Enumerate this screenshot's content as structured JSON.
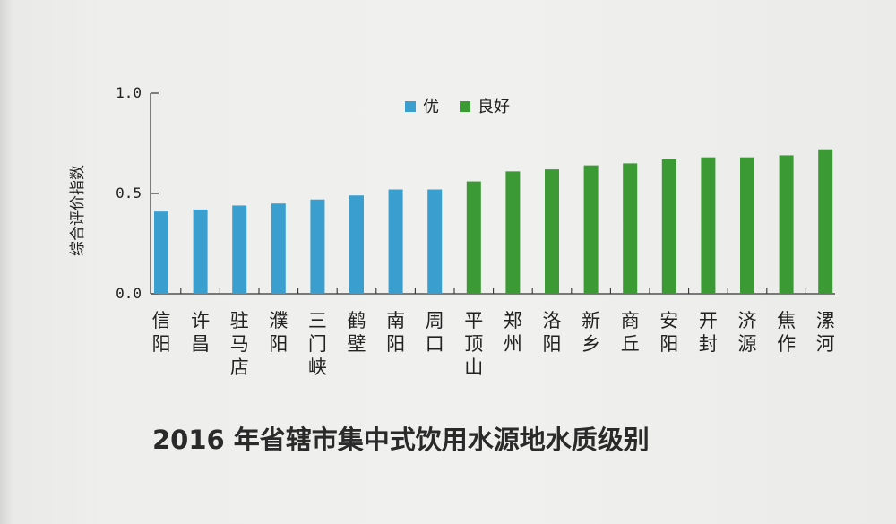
{
  "chart_data": {
    "type": "bar",
    "title": "2016 年省辖市集中式饮用水源地水质级别",
    "ylabel": "综合评价指数",
    "xlabel": "",
    "ylim": [
      0.0,
      1.0
    ],
    "yticks": [
      "0.0",
      "0.5",
      "1.0"
    ],
    "legend_position": "top-center",
    "legend": [
      {
        "name": "优",
        "color": "#3a9fcf"
      },
      {
        "name": "良好",
        "color": "#3c9a35"
      }
    ],
    "categories": [
      "信阳",
      "许昌",
      "驻马店",
      "濮阳",
      "三门峡",
      "鹤壁",
      "南阳",
      "周口",
      "平顶山",
      "郑州",
      "洛阳",
      "新乡",
      "商丘",
      "安阳",
      "开封",
      "济源",
      "焦作",
      "漯河"
    ],
    "values": [
      0.41,
      0.42,
      0.44,
      0.45,
      0.47,
      0.49,
      0.52,
      0.52,
      0.56,
      0.61,
      0.62,
      0.64,
      0.65,
      0.67,
      0.68,
      0.68,
      0.69,
      0.72
    ],
    "classes": [
      "优",
      "优",
      "优",
      "优",
      "优",
      "优",
      "优",
      "优",
      "良好",
      "良好",
      "良好",
      "良好",
      "良好",
      "良好",
      "良好",
      "良好",
      "良好",
      "良好"
    ]
  }
}
